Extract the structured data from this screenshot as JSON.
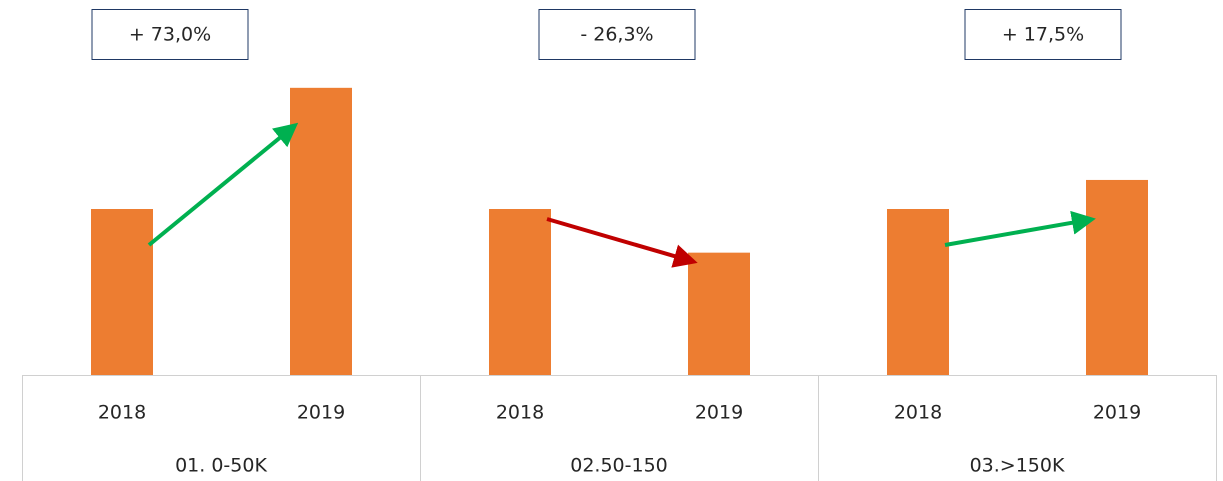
{
  "chart_data": {
    "type": "bar",
    "color": "#ED7D31",
    "up_color": "#00B050",
    "down_color": "#C00000",
    "ylim": [
      0,
      180
    ],
    "groups": [
      {
        "name": "01. 0-50K",
        "categories": [
          "2018",
          "2019"
        ],
        "values": [
          100,
          173
        ],
        "annotation": "+ 73,0%"
      },
      {
        "name": "02.50-150",
        "categories": [
          "2018",
          "2019"
        ],
        "values": [
          100,
          73.7
        ],
        "annotation": "- 26,3%"
      },
      {
        "name": "03.>150K",
        "categories": [
          "2018",
          "2019"
        ],
        "values": [
          100,
          117.5
        ],
        "annotation": "+ 17,5%"
      }
    ]
  }
}
